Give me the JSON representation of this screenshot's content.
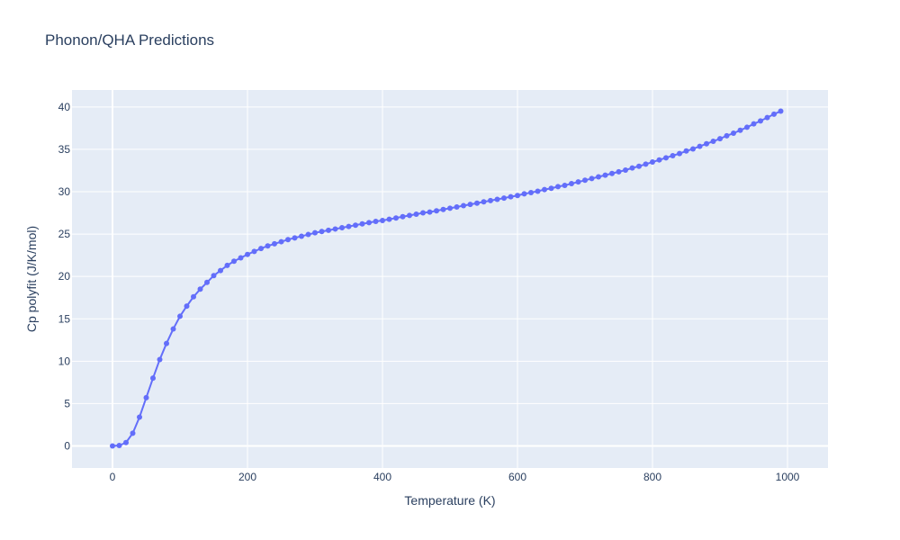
{
  "chart_data": {
    "type": "line",
    "title": "Phonon/QHA Predictions",
    "xlabel": "Temperature (K)",
    "ylabel": "Cp polyfit (J/K/mol)",
    "xlim": [
      -60,
      1060
    ],
    "ylim": [
      -2.6,
      42
    ],
    "xticks": [
      0,
      200,
      400,
      600,
      800,
      1000
    ],
    "yticks": [
      0,
      5,
      10,
      15,
      20,
      25,
      30,
      35,
      40
    ],
    "grid": true,
    "markers": true,
    "colors": {
      "plot_bg": "#e5ecf6",
      "grid": "#ffffff",
      "series": "#636efa",
      "text": "#2a3f5f"
    },
    "series": [
      {
        "x": [
          0,
          10,
          20,
          30,
          40,
          50,
          60,
          70,
          80,
          90,
          100,
          110,
          120,
          130,
          140,
          150,
          160,
          170,
          180,
          190,
          200,
          210,
          220,
          230,
          240,
          250,
          260,
          270,
          280,
          290,
          300,
          310,
          320,
          330,
          340,
          350,
          360,
          370,
          380,
          390,
          400,
          410,
          420,
          430,
          440,
          450,
          460,
          470,
          480,
          490,
          500,
          510,
          520,
          530,
          540,
          550,
          560,
          570,
          580,
          590,
          600,
          610,
          620,
          630,
          640,
          650,
          660,
          670,
          680,
          690,
          700,
          710,
          720,
          730,
          740,
          750,
          760,
          770,
          780,
          790,
          800,
          810,
          820,
          830,
          840,
          850,
          860,
          870,
          880,
          890,
          900,
          910,
          920,
          930,
          940,
          950,
          960,
          970,
          980,
          990
        ],
        "y": [
          0.0,
          0.05,
          0.4,
          1.5,
          3.4,
          5.7,
          8.0,
          10.2,
          12.1,
          13.8,
          15.3,
          16.5,
          17.6,
          18.5,
          19.3,
          20.1,
          20.7,
          21.3,
          21.8,
          22.2,
          22.6,
          22.95,
          23.3,
          23.6,
          23.85,
          24.1,
          24.35,
          24.55,
          24.75,
          24.95,
          25.15,
          25.3,
          25.45,
          25.6,
          25.75,
          25.9,
          26.05,
          26.2,
          26.35,
          26.5,
          26.6,
          26.75,
          26.9,
          27.05,
          27.2,
          27.35,
          27.5,
          27.6,
          27.75,
          27.9,
          28.05,
          28.2,
          28.35,
          28.5,
          28.65,
          28.8,
          28.95,
          29.1,
          29.25,
          29.4,
          29.55,
          29.75,
          29.9,
          30.05,
          30.25,
          30.4,
          30.6,
          30.75,
          30.95,
          31.15,
          31.35,
          31.55,
          31.75,
          31.95,
          32.15,
          32.35,
          32.55,
          32.8,
          33.0,
          33.25,
          33.5,
          33.75,
          34.0,
          34.25,
          34.5,
          34.8,
          35.05,
          35.35,
          35.65,
          35.95,
          36.25,
          36.6,
          36.9,
          37.25,
          37.6,
          38.0,
          38.35,
          38.75,
          39.15,
          39.5
        ]
      }
    ]
  }
}
